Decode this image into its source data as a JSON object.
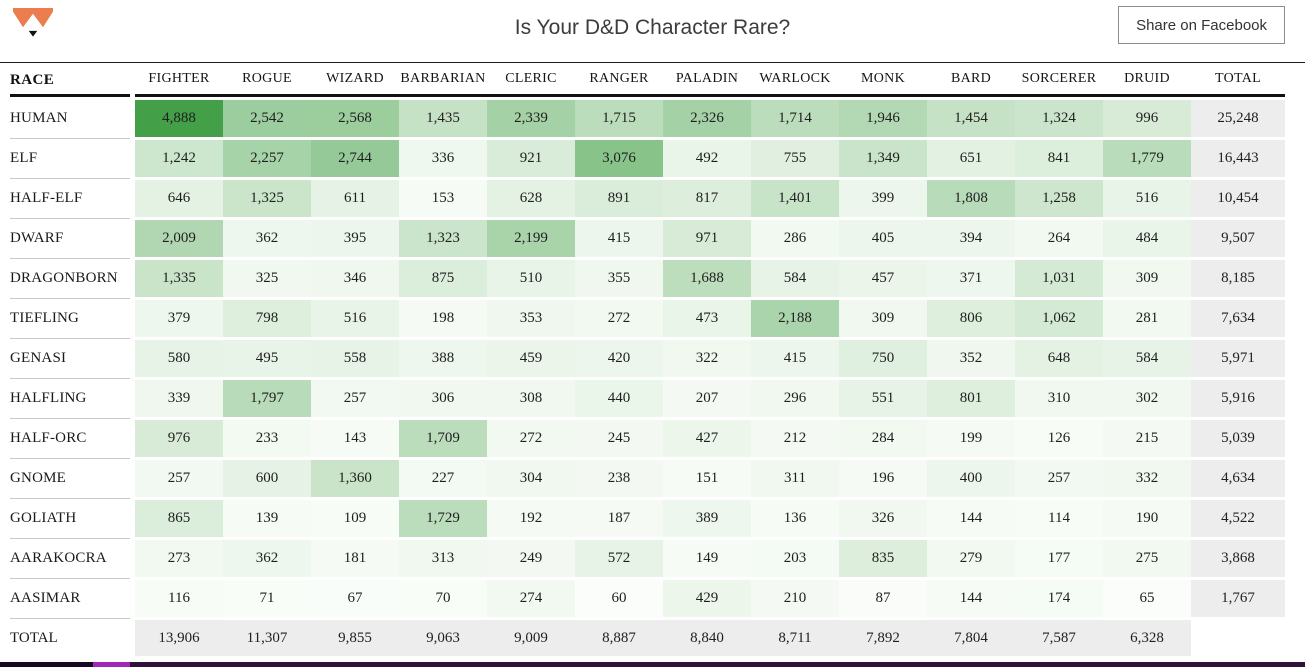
{
  "header": {
    "title": "Is Your D&D Character Rare?",
    "share_button": "Share on Facebook",
    "logo_color": "#ec7d4e",
    "logo_nose_color": "#111111"
  },
  "chart_data": {
    "type": "heatmap",
    "title": "Is Your D&D Character Rare?",
    "row_header": "RACE",
    "columns": [
      "FIGHTER",
      "ROGUE",
      "WIZARD",
      "BARBARIAN",
      "CLERIC",
      "RANGER",
      "PALADIN",
      "WARLOCK",
      "MONK",
      "BARD",
      "SORCERER",
      "DRUID"
    ],
    "total_label": "TOTAL",
    "rows": [
      {
        "race": "HUMAN",
        "values": [
          4888,
          2542,
          2568,
          1435,
          2339,
          1715,
          2326,
          1714,
          1946,
          1454,
          1324,
          996
        ],
        "total": 25248
      },
      {
        "race": "ELF",
        "values": [
          1242,
          2257,
          2744,
          336,
          921,
          3076,
          492,
          755,
          1349,
          651,
          841,
          1779
        ],
        "total": 16443
      },
      {
        "race": "HALF-ELF",
        "values": [
          646,
          1325,
          611,
          153,
          628,
          891,
          817,
          1401,
          399,
          1808,
          1258,
          516
        ],
        "total": 10454
      },
      {
        "race": "DWARF",
        "values": [
          2009,
          362,
          395,
          1323,
          2199,
          415,
          971,
          286,
          405,
          394,
          264,
          484
        ],
        "total": 9507
      },
      {
        "race": "DRAGONBORN",
        "values": [
          1335,
          325,
          346,
          875,
          510,
          355,
          1688,
          584,
          457,
          371,
          1031,
          309
        ],
        "total": 8185
      },
      {
        "race": "TIEFLING",
        "values": [
          379,
          798,
          516,
          198,
          353,
          272,
          473,
          2188,
          309,
          806,
          1062,
          281
        ],
        "total": 7634
      },
      {
        "race": "GENASI",
        "values": [
          580,
          495,
          558,
          388,
          459,
          420,
          322,
          415,
          750,
          352,
          648,
          584
        ],
        "total": 5971
      },
      {
        "race": "HALFLING",
        "values": [
          339,
          1797,
          257,
          306,
          308,
          440,
          207,
          296,
          551,
          801,
          310,
          302
        ],
        "total": 5916
      },
      {
        "race": "HALF-ORC",
        "values": [
          976,
          233,
          143,
          1709,
          272,
          245,
          427,
          212,
          284,
          199,
          126,
          215
        ],
        "total": 5039
      },
      {
        "race": "GNOME",
        "values": [
          257,
          600,
          1360,
          227,
          304,
          238,
          151,
          311,
          196,
          400,
          257,
          332
        ],
        "total": 4634
      },
      {
        "race": "GOLIATH",
        "values": [
          865,
          139,
          109,
          1729,
          192,
          187,
          389,
          136,
          326,
          144,
          114,
          190
        ],
        "total": 4522
      },
      {
        "race": "AARAKOCRA",
        "values": [
          273,
          362,
          181,
          313,
          249,
          572,
          149,
          203,
          835,
          279,
          177,
          275
        ],
        "total": 3868
      },
      {
        "race": "AASIMAR",
        "values": [
          116,
          71,
          67,
          70,
          274,
          60,
          429,
          210,
          87,
          144,
          174,
          65
        ],
        "total": 1767
      }
    ],
    "column_totals": [
      13906,
      11307,
      9855,
      9063,
      9009,
      8887,
      8840,
      8711,
      7892,
      7804,
      7587,
      6328
    ],
    "max_value": 4888,
    "legend": "none",
    "grid": "off",
    "colors": {
      "scale_min": "#fcfefb",
      "scale_max": "#44a048",
      "total_bg": "#ededed"
    }
  },
  "footer": {
    "bar_color": "#30113a",
    "bar_dark_segment_color": "#170a20",
    "bar_thumb_color": "#a127b5"
  }
}
